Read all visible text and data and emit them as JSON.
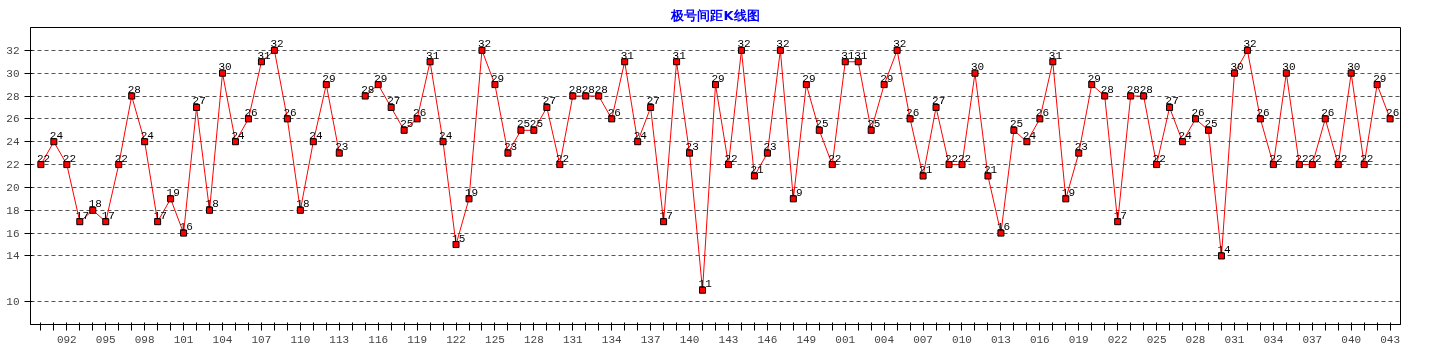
{
  "chart_data": {
    "type": "line",
    "title": "极号间距K线图",
    "categories": [
      null,
      null,
      "092",
      null,
      null,
      "095",
      null,
      null,
      "098",
      null,
      null,
      "101",
      null,
      null,
      "104",
      null,
      null,
      "107",
      null,
      null,
      "110",
      null,
      null,
      "113",
      null,
      null,
      "116",
      null,
      null,
      "119",
      null,
      null,
      "122",
      null,
      null,
      "125",
      null,
      null,
      "128",
      null,
      null,
      "131",
      null,
      null,
      "134",
      null,
      null,
      "137",
      null,
      null,
      "140",
      null,
      null,
      "143",
      null,
      null,
      "146",
      null,
      null,
      "149",
      null,
      null,
      "001",
      null,
      null,
      "004",
      null,
      null,
      "007",
      null,
      null,
      "010",
      null,
      null,
      "013",
      null,
      null,
      "016",
      null,
      null,
      "019",
      null,
      null,
      "022",
      null,
      null,
      "025",
      null,
      null,
      "028",
      null,
      null,
      "031",
      null,
      null,
      "034",
      null,
      null,
      "037",
      null,
      null,
      "040",
      null,
      null,
      "043"
    ],
    "series": [
      {
        "color": "#ff0000",
        "values": [
          22,
          24,
          22,
          17,
          18,
          17,
          22,
          28,
          24,
          17,
          19,
          16,
          27,
          18,
          30,
          24,
          26,
          31,
          32,
          26,
          18,
          24,
          29,
          23,
          null,
          28,
          29,
          27,
          25,
          26,
          31,
          24,
          15,
          19,
          32,
          29,
          23,
          25,
          25,
          27,
          22,
          28,
          28,
          28,
          26,
          31,
          24,
          27,
          17,
          31,
          23,
          11,
          29,
          22,
          32,
          21,
          23,
          32,
          19,
          29,
          25,
          22,
          31,
          31,
          25,
          29,
          32,
          26,
          21,
          27,
          22,
          22,
          30,
          21,
          16,
          25,
          24,
          26,
          31,
          19,
          23,
          29,
          28,
          17,
          28,
          28,
          22,
          27,
          24,
          26,
          25,
          14,
          30,
          32,
          26,
          22,
          30,
          22,
          22,
          26,
          22,
          30,
          22,
          29,
          26
        ]
      }
    ],
    "ylim": [
      8,
      34
    ],
    "yticks": [
      10,
      14,
      16,
      18,
      20,
      22,
      24,
      26,
      28,
      30,
      32
    ],
    "grid": "y",
    "marker": "square",
    "line_style": "solid",
    "data_labels": true
  }
}
